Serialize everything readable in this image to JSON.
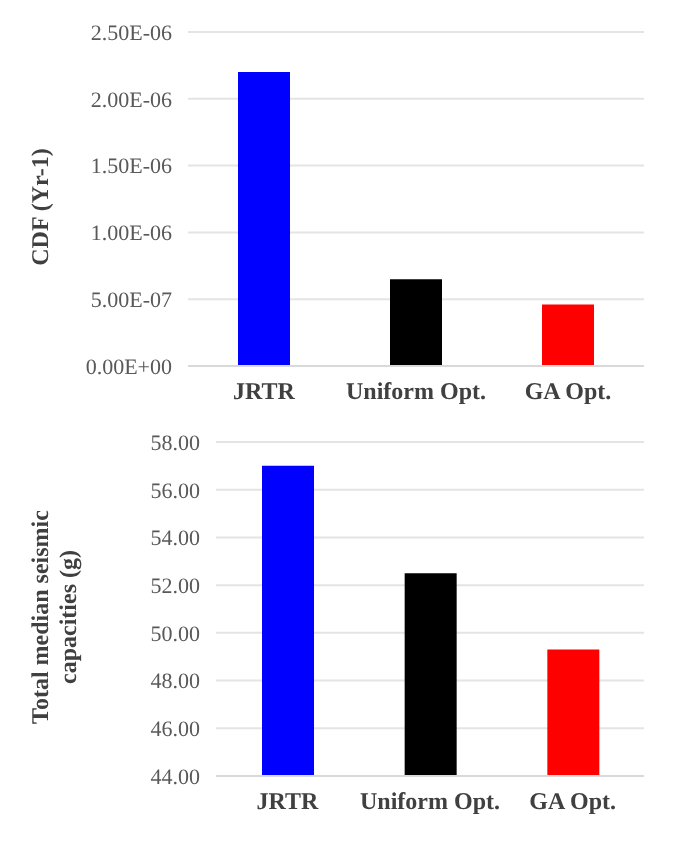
{
  "chart_data": [
    {
      "type": "bar",
      "ylabel": "CDF (Yr-1)",
      "categories": [
        "JRTR",
        "Uniform Opt.",
        "GA Opt."
      ],
      "values": [
        2.2e-06,
        6.5e-07,
        4.6e-07
      ],
      "colors": [
        "#0000ff",
        "#000000",
        "#ff0000"
      ],
      "ylim": [
        0,
        2.5e-06
      ],
      "yticks": [
        {
          "value": 0,
          "label": "0.00E+00"
        },
        {
          "value": 5e-07,
          "label": "5.00E-07"
        },
        {
          "value": 1e-06,
          "label": "1.00E-06"
        },
        {
          "value": 1.5e-06,
          "label": "1.50E-06"
        },
        {
          "value": 2e-06,
          "label": "2.00E-06"
        },
        {
          "value": 2.5e-06,
          "label": "2.50E-06"
        }
      ],
      "grid": "y"
    },
    {
      "type": "bar",
      "ylabel": "Total median seismic capacities (g)",
      "categories": [
        "JRTR",
        "Uniform Opt.",
        "GA Opt."
      ],
      "values": [
        57.0,
        52.5,
        49.3
      ],
      "colors": [
        "#0000ff",
        "#000000",
        "#ff0000"
      ],
      "ylim": [
        44,
        58
      ],
      "yticks": [
        {
          "value": 44,
          "label": "44.00"
        },
        {
          "value": 46,
          "label": "46.00"
        },
        {
          "value": 48,
          "label": "48.00"
        },
        {
          "value": 50,
          "label": "50.00"
        },
        {
          "value": 52,
          "label": "52.00"
        },
        {
          "value": 54,
          "label": "54.00"
        },
        {
          "value": 56,
          "label": "56.00"
        },
        {
          "value": 58,
          "label": "58.00"
        }
      ],
      "grid": "y"
    }
  ]
}
